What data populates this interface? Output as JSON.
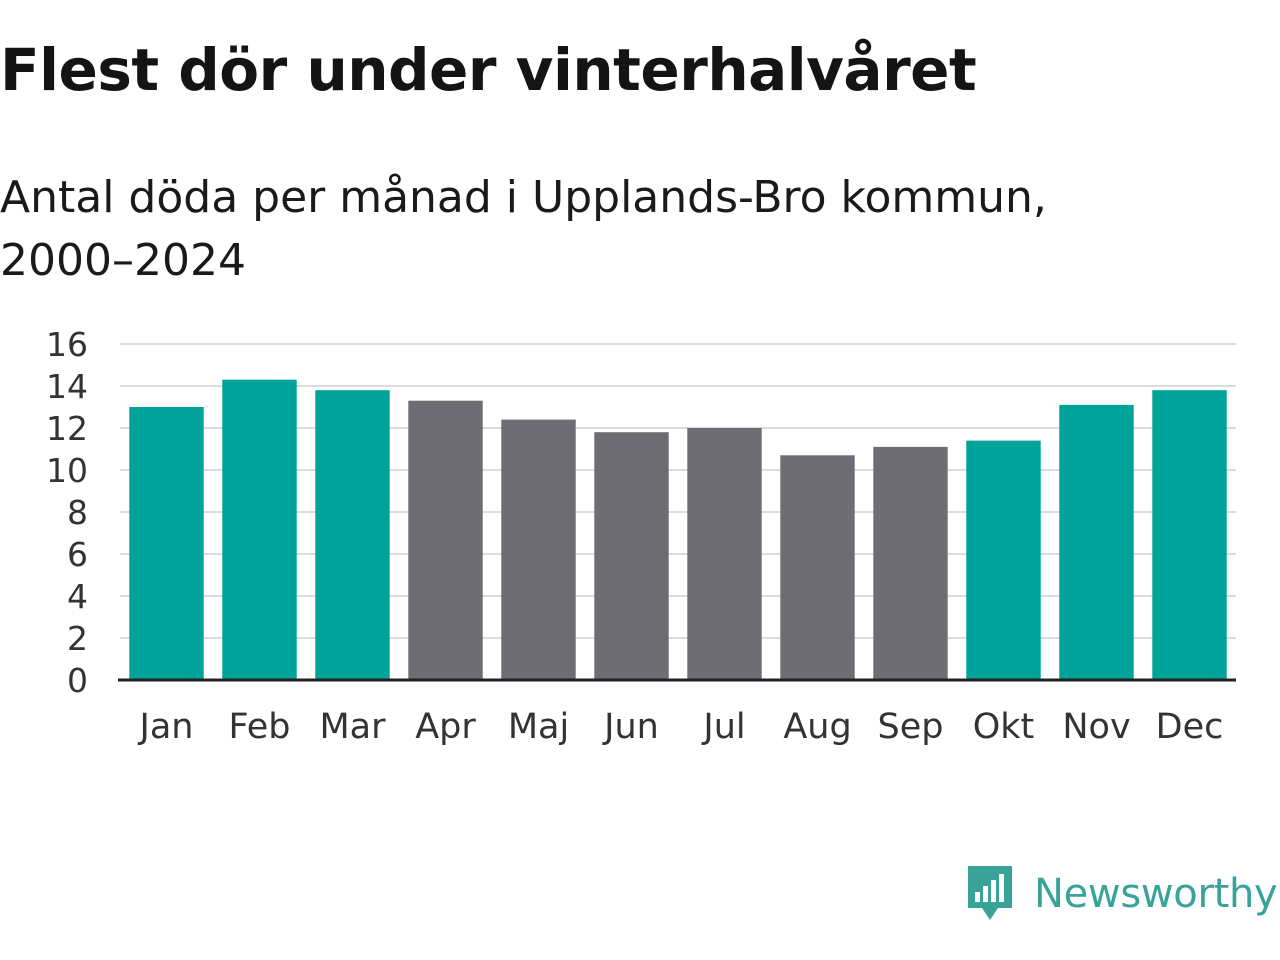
{
  "title": "Flest dör under vinterhalvåret",
  "subtitle": "Antal döda per månad i Upplands-Bro kommun, 2000–2024",
  "chart_data": {
    "type": "bar",
    "categories": [
      "Jan",
      "Feb",
      "Mar",
      "Apr",
      "Maj",
      "Jun",
      "Jul",
      "Aug",
      "Sep",
      "Okt",
      "Nov",
      "Dec"
    ],
    "values": [
      13.0,
      14.3,
      13.8,
      13.3,
      12.4,
      11.8,
      12.0,
      10.7,
      11.1,
      11.4,
      13.1,
      13.8
    ],
    "highlight": [
      true,
      true,
      true,
      false,
      false,
      false,
      false,
      false,
      false,
      true,
      true,
      true
    ],
    "ylim": [
      0,
      16
    ],
    "yticks": [
      0,
      2,
      4,
      6,
      8,
      10,
      12,
      14,
      16
    ],
    "xlabel": "",
    "ylabel": "",
    "grid": true,
    "colors": {
      "highlight": "#00a39a",
      "default": "#6d6d73",
      "grid": "#dcdcdc",
      "axis": "#222222"
    }
  },
  "branding": {
    "name": "Newsworthy",
    "color": "#3aa399",
    "icon": "newsworthy-logo-icon"
  }
}
